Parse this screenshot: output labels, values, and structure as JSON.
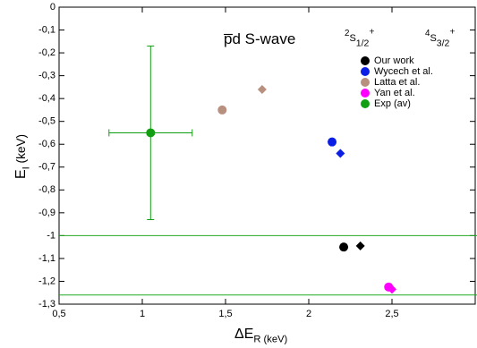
{
  "chart_data": {
    "type": "scatter",
    "title": {
      "main": "p̅d S-wave"
    },
    "column_labels": [
      {
        "pre": "2",
        "main": "S",
        "sub": "1/2",
        "sup": "+"
      },
      {
        "pre": "4",
        "main": "S",
        "sub": "3/2",
        "sup": "+"
      }
    ],
    "xlabel": {
      "main": "ΔE",
      "sub": "R (keV)"
    },
    "ylabel": {
      "main": "E",
      "sub": "I",
      "post": " (keV)"
    },
    "xlim": [
      0.5,
      3
    ],
    "ylim": [
      -1.3,
      0
    ],
    "xticks": [
      {
        "value": 0.5,
        "label": "0,5"
      },
      1,
      {
        "value": 1.5,
        "label": "1,5"
      },
      2,
      {
        "value": 2.5,
        "label": "2,5"
      }
    ],
    "yticks": [
      0,
      {
        "value": -0.1,
        "label": "-0,1"
      },
      {
        "value": -0.2,
        "label": "-0,2"
      },
      {
        "value": -0.3,
        "label": "-0,3"
      },
      {
        "value": -0.4,
        "label": "-0,4"
      },
      {
        "value": -0.5,
        "label": "-0,5"
      },
      {
        "value": -0.6,
        "label": "-0,6"
      },
      {
        "value": -0.7,
        "label": "-0,7"
      },
      {
        "value": -0.8,
        "label": "-0,8"
      },
      {
        "value": -0.9,
        "label": "-0,9"
      },
      -1,
      {
        "value": -1.1,
        "label": "-1,1"
      },
      {
        "value": -1.2,
        "label": "-1,2"
      },
      {
        "value": -1.3,
        "label": "-1,3"
      }
    ],
    "hlines": [
      -1,
      -1.26
    ],
    "hline_color": "#22aa22",
    "series": [
      {
        "name": "Our work",
        "color": "#000000",
        "x": [
          2.21,
          2.31
        ],
        "values": [
          -1.05,
          -1.045
        ],
        "markers": [
          "circle",
          "diamond"
        ]
      },
      {
        "name": "Wycech et al.",
        "color": "#0a1ee6",
        "x": [
          2.14,
          2.19
        ],
        "values": [
          -0.59,
          -0.64
        ],
        "markers": [
          "circle",
          "diamond"
        ]
      },
      {
        "name": "Latta et al.",
        "color": "#b89080",
        "x": [
          1.48,
          1.72
        ],
        "values": [
          -0.45,
          -0.36
        ],
        "markers": [
          "circle",
          "diamond"
        ]
      },
      {
        "name": "Yan et al.",
        "color": "#ff00ff",
        "x": [
          2.48,
          2.5
        ],
        "values": [
          -1.225,
          -1.235
        ],
        "markers": [
          "circle",
          "diamond"
        ]
      },
      {
        "name": "Exp (av)",
        "color": "#129e12",
        "x": [
          1.05
        ],
        "values": [
          -0.55
        ],
        "markers": [
          "circle"
        ],
        "xerr": [
          0.25
        ],
        "yerr": [
          0.38
        ]
      }
    ],
    "legend": "upper right"
  }
}
